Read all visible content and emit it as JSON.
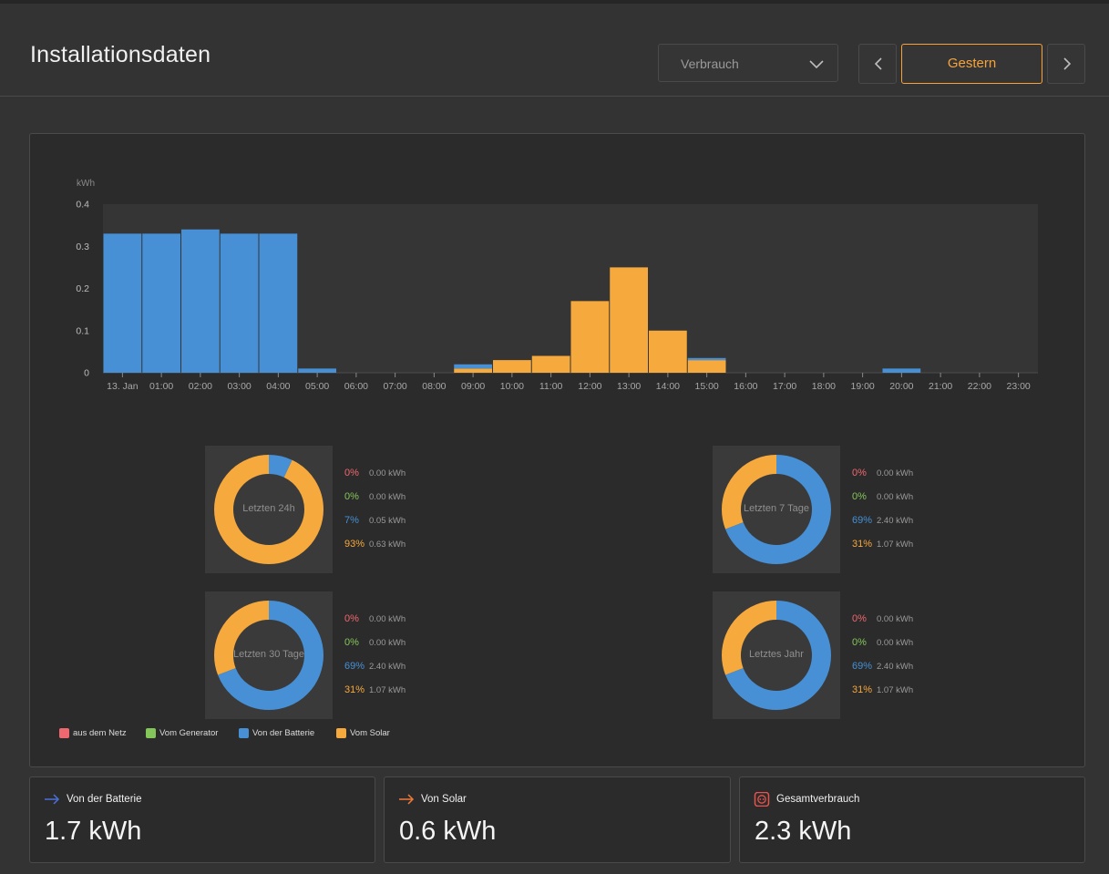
{
  "header": {
    "title": "Installationsdaten",
    "select_value": "Verbrauch",
    "period": "Gestern"
  },
  "colors": {
    "grid": "#f0686f",
    "generator": "#85c65b",
    "battery": "#4790d5",
    "solar": "#f6a93c",
    "accent": "#f6a33c"
  },
  "chart_data": {
    "type": "bar",
    "ylabel": "kWh",
    "ylim": [
      0,
      0.4
    ],
    "yticks": [
      "0",
      "0.1",
      "0.2",
      "0.3",
      "0.4"
    ],
    "categories": [
      "13. Jan",
      "01:00",
      "02:00",
      "03:00",
      "04:00",
      "05:00",
      "06:00",
      "07:00",
      "08:00",
      "09:00",
      "10:00",
      "11:00",
      "12:00",
      "13:00",
      "14:00",
      "15:00",
      "16:00",
      "17:00",
      "18:00",
      "19:00",
      "20:00",
      "21:00",
      "22:00",
      "23:00"
    ],
    "series": [
      {
        "name": "Vom Solar",
        "color": "#f6a93c",
        "values": [
          0,
          0,
          0,
          0,
          0,
          0,
          0,
          0,
          0,
          0.01,
          0.03,
          0.04,
          0.17,
          0.25,
          0.1,
          0.03,
          0,
          0,
          0,
          0,
          0,
          0,
          0,
          0
        ]
      },
      {
        "name": "Von der Batterie",
        "color": "#4790d5",
        "values": [
          0.33,
          0.33,
          0.34,
          0.33,
          0.33,
          0.01,
          0,
          0,
          0,
          0.01,
          0,
          0,
          0,
          0,
          0,
          0.005,
          0,
          0,
          0,
          0,
          0.01,
          0,
          0,
          0
        ]
      }
    ]
  },
  "donuts": [
    {
      "label": "Letzten 24h",
      "rows": [
        {
          "pct": "0%",
          "value": "0.00 kWh",
          "color": "#f0686f"
        },
        {
          "pct": "0%",
          "value": "0.00 kWh",
          "color": "#85c65b"
        },
        {
          "pct": "7%",
          "value": "0.05 kWh",
          "color": "#4790d5"
        },
        {
          "pct": "93%",
          "value": "0.63 kWh",
          "color": "#f6a93c"
        }
      ],
      "fractions": {
        "battery": 0.07,
        "solar": 0.93
      }
    },
    {
      "label": "Letzten 7 Tage",
      "rows": [
        {
          "pct": "0%",
          "value": "0.00 kWh",
          "color": "#f0686f"
        },
        {
          "pct": "0%",
          "value": "0.00 kWh",
          "color": "#85c65b"
        },
        {
          "pct": "69%",
          "value": "2.40 kWh",
          "color": "#4790d5"
        },
        {
          "pct": "31%",
          "value": "1.07 kWh",
          "color": "#f6a93c"
        }
      ],
      "fractions": {
        "battery": 0.69,
        "solar": 0.31
      }
    },
    {
      "label": "Letzten 30 Tage",
      "rows": [
        {
          "pct": "0%",
          "value": "0.00 kWh",
          "color": "#f0686f"
        },
        {
          "pct": "0%",
          "value": "0.00 kWh",
          "color": "#85c65b"
        },
        {
          "pct": "69%",
          "value": "2.40 kWh",
          "color": "#4790d5"
        },
        {
          "pct": "31%",
          "value": "1.07 kWh",
          "color": "#f6a93c"
        }
      ],
      "fractions": {
        "battery": 0.69,
        "solar": 0.31
      }
    },
    {
      "label": "Letztes Jahr",
      "rows": [
        {
          "pct": "0%",
          "value": "0.00 kWh",
          "color": "#f0686f"
        },
        {
          "pct": "0%",
          "value": "0.00 kWh",
          "color": "#85c65b"
        },
        {
          "pct": "69%",
          "value": "2.40 kWh",
          "color": "#4790d5"
        },
        {
          "pct": "31%",
          "value": "1.07 kWh",
          "color": "#f6a93c"
        }
      ],
      "fractions": {
        "battery": 0.69,
        "solar": 0.31
      }
    }
  ],
  "legend": [
    {
      "label": "aus dem Netz",
      "color": "#f0686f"
    },
    {
      "label": "Vom Generator",
      "color": "#85c65b"
    },
    {
      "label": "Von der Batterie",
      "color": "#4790d5"
    },
    {
      "label": "Vom Solar",
      "color": "#f6a93c"
    }
  ],
  "cards": [
    {
      "title": "Von der Batterie",
      "value": "1.7 kWh",
      "icon": "arrow-right-icon",
      "icon_color": "#4a6fd8"
    },
    {
      "title": "Von Solar",
      "value": "0.6 kWh",
      "icon": "arrow-right-icon",
      "icon_color": "#ef7b3a"
    },
    {
      "title": "Gesamtverbrauch",
      "value": "2.3 kWh",
      "icon": "power-socket-icon",
      "icon_color": "#e8534d"
    }
  ]
}
